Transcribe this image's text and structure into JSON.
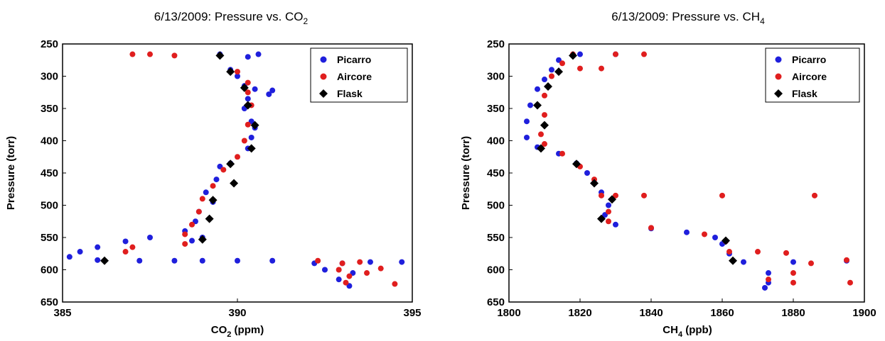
{
  "colors": {
    "picarro": "#1f1fdc",
    "aircore": "#e01e1e",
    "flask": "#000000"
  },
  "chart_data": [
    {
      "type": "scatter",
      "title": "6/13/2009:  Pressure vs. CO",
      "title_subscript": "2",
      "xlabel": "CO",
      "xlabel_subscript": "2",
      "xlabel_suffix": " (ppm)",
      "ylabel": "Pressure (torr)",
      "xlim": [
        385,
        395
      ],
      "ylim": [
        650,
        250
      ],
      "xticks": [
        "385",
        "390",
        "395"
      ],
      "yticks": [
        "250",
        "300",
        "350",
        "400",
        "450",
        "500",
        "550",
        "600",
        "650"
      ],
      "legend_position": "top-right",
      "series": [
        {
          "name": "Picarro",
          "marker": "circle",
          "points": [
            [
              389.5,
              266
            ],
            [
              390.6,
              266
            ],
            [
              390.3,
              270
            ],
            [
              389.8,
              290
            ],
            [
              390.0,
              300
            ],
            [
              390.2,
              315
            ],
            [
              390.5,
              320
            ],
            [
              391.0,
              322
            ],
            [
              390.3,
              335
            ],
            [
              390.2,
              350
            ],
            [
              390.4,
              370
            ],
            [
              390.5,
              380
            ],
            [
              390.4,
              395
            ],
            [
              390.3,
              412
            ],
            [
              389.8,
              435
            ],
            [
              389.5,
              440
            ],
            [
              389.4,
              460
            ],
            [
              389.1,
              480
            ],
            [
              389.3,
              495
            ],
            [
              388.9,
              510
            ],
            [
              388.8,
              525
            ],
            [
              388.5,
              540
            ],
            [
              389.0,
              550
            ],
            [
              388.7,
              555
            ],
            [
              386.8,
              556
            ],
            [
              386.0,
              565
            ],
            [
              385.5,
              572
            ],
            [
              385.2,
              580
            ],
            [
              386.0,
              585
            ],
            [
              387.2,
              586
            ],
            [
              388.2,
              586
            ],
            [
              389.0,
              586
            ],
            [
              390.0,
              586
            ],
            [
              391.0,
              586
            ],
            [
              392.2,
              590
            ],
            [
              393.0,
              590
            ],
            [
              393.8,
              588
            ],
            [
              394.7,
              588
            ],
            [
              392.5,
              600
            ],
            [
              393.3,
              605
            ],
            [
              392.9,
              615
            ],
            [
              393.2,
              625
            ],
            [
              387.5,
              550
            ],
            [
              390.9,
              328
            ]
          ]
        },
        {
          "name": "Aircore",
          "marker": "circle",
          "points": [
            [
              387.0,
              266
            ],
            [
              387.5,
              266
            ],
            [
              388.2,
              268
            ],
            [
              389.5,
              268
            ],
            [
              390.0,
              293
            ],
            [
              390.3,
              310
            ],
            [
              390.3,
              325
            ],
            [
              390.4,
              345
            ],
            [
              390.3,
              375
            ],
            [
              390.2,
              400
            ],
            [
              390.0,
              425
            ],
            [
              389.6,
              445
            ],
            [
              389.3,
              470
            ],
            [
              389.0,
              490
            ],
            [
              388.9,
              510
            ],
            [
              388.7,
              530
            ],
            [
              388.5,
              545
            ],
            [
              388.5,
              560
            ],
            [
              386.8,
              572
            ],
            [
              387.0,
              565
            ],
            [
              392.3,
              586
            ],
            [
              393.0,
              590
            ],
            [
              393.5,
              588
            ],
            [
              392.9,
              600
            ],
            [
              393.2,
              610
            ],
            [
              393.1,
              620
            ],
            [
              394.5,
              622
            ],
            [
              393.7,
              605
            ],
            [
              394.1,
              598
            ]
          ]
        },
        {
          "name": "Flask",
          "marker": "diamond",
          "points": [
            [
              389.5,
              268
            ],
            [
              389.8,
              293
            ],
            [
              390.2,
              318
            ],
            [
              390.3,
              345
            ],
            [
              390.5,
              376
            ],
            [
              390.4,
              412
            ],
            [
              389.8,
              436
            ],
            [
              389.9,
              466
            ],
            [
              389.3,
              492
            ],
            [
              389.2,
              521
            ],
            [
              389.0,
              553
            ],
            [
              386.2,
              586
            ]
          ]
        }
      ]
    },
    {
      "type": "scatter",
      "title": "6/13/2009:  Pressure vs. CH",
      "title_subscript": "4",
      "xlabel": "CH",
      "xlabel_subscript": "4",
      "xlabel_suffix": " (ppb)",
      "ylabel": "Pressure (torr)",
      "xlim": [
        1800,
        1900
      ],
      "ylim": [
        650,
        250
      ],
      "xticks": [
        "1800",
        "1820",
        "1840",
        "1860",
        "1880",
        "1900"
      ],
      "yticks": [
        "250",
        "300",
        "350",
        "400",
        "450",
        "500",
        "550",
        "600",
        "650"
      ],
      "legend_position": "top-right",
      "series": [
        {
          "name": "Picarro",
          "marker": "circle",
          "points": [
            [
              1830,
              266
            ],
            [
              1820,
              266
            ],
            [
              1814,
              275
            ],
            [
              1812,
              290
            ],
            [
              1810,
              305
            ],
            [
              1808,
              320
            ],
            [
              1806,
              345
            ],
            [
              1805,
              370
            ],
            [
              1805,
              395
            ],
            [
              1808,
              410
            ],
            [
              1814,
              420
            ],
            [
              1819,
              435
            ],
            [
              1822,
              450
            ],
            [
              1824,
              465
            ],
            [
              1826,
              480
            ],
            [
              1828,
              500
            ],
            [
              1827,
              515
            ],
            [
              1830,
              530
            ],
            [
              1840,
              536
            ],
            [
              1850,
              542
            ],
            [
              1858,
              550
            ],
            [
              1860,
              560
            ],
            [
              1862,
              575
            ],
            [
              1866,
              588
            ],
            [
              1880,
              588
            ],
            [
              1895,
              586
            ],
            [
              1873,
              605
            ],
            [
              1873,
              620
            ],
            [
              1872,
              628
            ]
          ]
        },
        {
          "name": "Aircore",
          "marker": "circle",
          "points": [
            [
              1818,
              266
            ],
            [
              1830,
              266
            ],
            [
              1838,
              266
            ],
            [
              1815,
              280
            ],
            [
              1820,
              288
            ],
            [
              1826,
              288
            ],
            [
              1812,
              300
            ],
            [
              1810,
              330
            ],
            [
              1810,
              360
            ],
            [
              1809,
              390
            ],
            [
              1810,
              405
            ],
            [
              1815,
              420
            ],
            [
              1820,
              440
            ],
            [
              1824,
              460
            ],
            [
              1826,
              485
            ],
            [
              1830,
              485
            ],
            [
              1838,
              485
            ],
            [
              1860,
              485
            ],
            [
              1886,
              485
            ],
            [
              1828,
              510
            ],
            [
              1828,
              525
            ],
            [
              1840,
              535
            ],
            [
              1855,
              545
            ],
            [
              1861,
              556
            ],
            [
              1862,
              572
            ],
            [
              1870,
              572
            ],
            [
              1878,
              574
            ],
            [
              1885,
              590
            ],
            [
              1895,
              585
            ],
            [
              1880,
              605
            ],
            [
              1873,
              615
            ],
            [
              1880,
              620
            ],
            [
              1896,
              620
            ]
          ]
        },
        {
          "name": "Flask",
          "marker": "diamond",
          "points": [
            [
              1818,
              268
            ],
            [
              1814,
              293
            ],
            [
              1811,
              316
            ],
            [
              1808,
              345
            ],
            [
              1810,
              376
            ],
            [
              1809,
              412
            ],
            [
              1819,
              436
            ],
            [
              1824,
              466
            ],
            [
              1829,
              491
            ],
            [
              1826,
              521
            ],
            [
              1861,
              555
            ],
            [
              1863,
              586
            ]
          ]
        }
      ]
    }
  ]
}
